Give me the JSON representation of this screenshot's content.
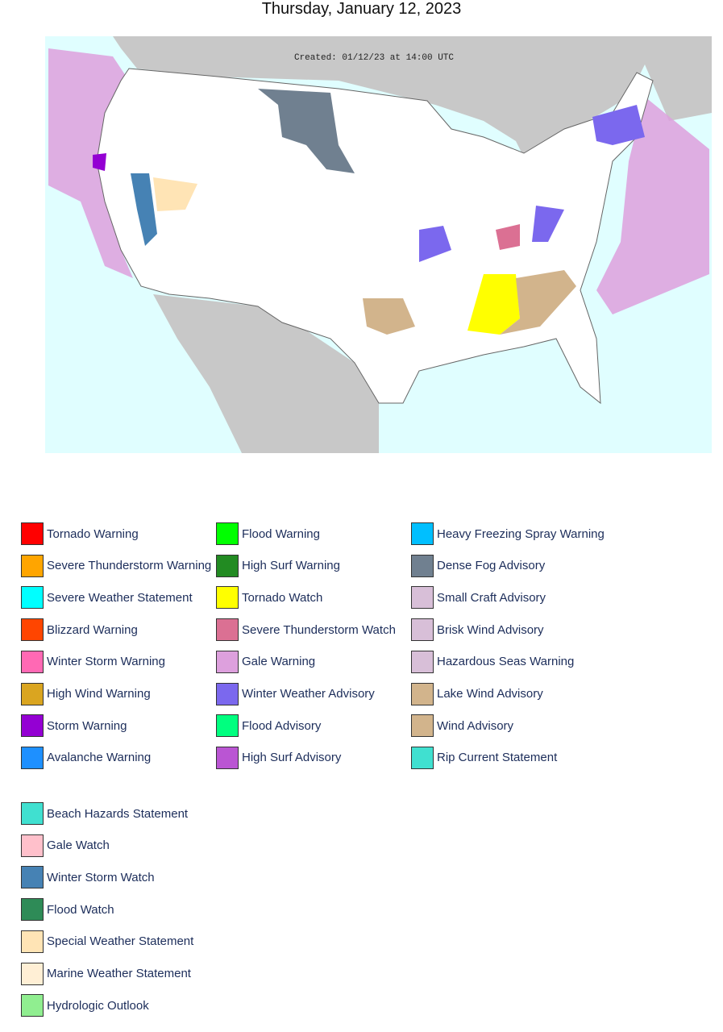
{
  "header": {
    "title": "Thursday, January 12, 2023"
  },
  "map": {
    "caption": "Created: 01/12/23 at 14:00 UTC"
  },
  "legend": {
    "groups": [
      {
        "items": [
          {
            "label": "Tornado Warning",
            "color": "#FF0000"
          },
          {
            "label": "Severe Thunderstorm Warning",
            "color": "#FFA500"
          },
          {
            "label": "Severe Weather Statement",
            "color": "#00FFFF"
          },
          {
            "label": "Blizzard Warning",
            "color": "#FF4500"
          },
          {
            "label": "Winter Storm Warning",
            "color": "#FF69B4"
          },
          {
            "label": "High Wind Warning",
            "color": "#DAA520"
          },
          {
            "label": "Storm Warning",
            "color": "#9400D3"
          },
          {
            "label": "Avalanche Warning",
            "color": "#1E90FF"
          },
          {
            "label": "Flood Warning",
            "color": "#00FF00"
          },
          {
            "label": "High Surf Warning",
            "color": "#228B22"
          },
          {
            "label": "Tornado Watch",
            "color": "#FFFF00"
          },
          {
            "label": "Severe Thunderstorm Watch",
            "color": "#DB7093"
          },
          {
            "label": "Gale Warning",
            "color": "#DDA0DD"
          },
          {
            "label": "Winter Weather Advisory",
            "color": "#7B68EE"
          },
          {
            "label": "Flood Advisory",
            "color": "#00FF7F"
          },
          {
            "label": "High Surf Advisory",
            "color": "#BA55D3"
          },
          {
            "label": "Heavy Freezing Spray Warning",
            "color": "#00BFFF"
          },
          {
            "label": "Dense Fog Advisory",
            "color": "#708090"
          },
          {
            "label": "Small Craft Advisory",
            "color": "#D8BFD8"
          },
          {
            "label": "Brisk Wind Advisory",
            "color": "#D8BFD8"
          },
          {
            "label": "Hazardous Seas Warning",
            "color": "#D8BFD8"
          },
          {
            "label": "Lake Wind Advisory",
            "color": "#D2B48C"
          },
          {
            "label": "Wind Advisory",
            "color": "#D2B48C"
          },
          {
            "label": "Rip Current Statement",
            "color": "#40E0D0"
          }
        ]
      },
      {
        "items": [
          {
            "label": "Beach Hazards Statement",
            "color": "#40E0D0"
          },
          {
            "label": "Gale Watch",
            "color": "#FFC0CB"
          },
          {
            "label": "Winter Storm Watch",
            "color": "#4682B4"
          },
          {
            "label": "Flood Watch",
            "color": "#2E8B57"
          },
          {
            "label": "Special Weather Statement",
            "color": "#FFE4B5"
          },
          {
            "label": "Marine Weather Statement",
            "color": "#FFEFD5"
          },
          {
            "label": "Hydrologic Outlook",
            "color": "#90EE90"
          }
        ]
      }
    ]
  }
}
